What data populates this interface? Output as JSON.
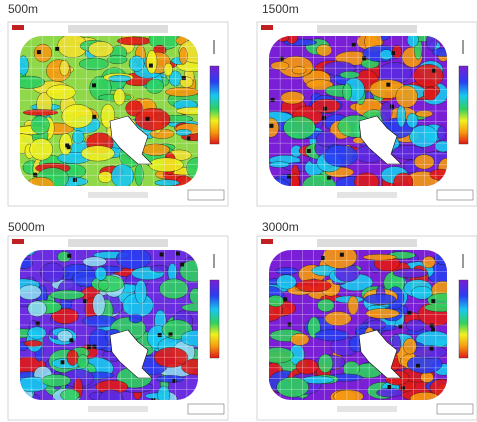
{
  "panels": [
    {
      "label": "500m"
    },
    {
      "label": "1500m"
    },
    {
      "label": "5000m"
    },
    {
      "label": "3000m"
    }
  ]
}
